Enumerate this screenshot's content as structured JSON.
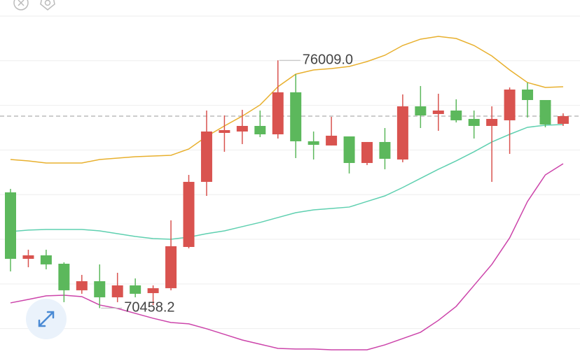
{
  "chart_data": {
    "type": "candlestick",
    "open": [
      73051,
      71562,
      71640,
      71452,
      70857,
      71061,
      70700,
      70967,
      70794,
      70904,
      71828,
      73286,
      74383,
      74414,
      74539,
      74351,
      75292,
      74195,
      74101,
      74304,
      73709,
      74179,
      73787,
      74978,
      74806,
      74884,
      74696,
      74539,
      74665,
      75354,
      75119,
      74586
    ],
    "high": [
      73129,
      71766,
      71766,
      71484,
      71202,
      71437,
      71249,
      71123,
      70967,
      72424,
      73442,
      74884,
      74774,
      74900,
      74884,
      76009,
      75699,
      74414,
      74743,
      74304,
      74179,
      74492,
      75245,
      75433,
      75260,
      75135,
      74884,
      74978,
      75401,
      75511,
      75119,
      74821
    ],
    "low": [
      71280,
      71374,
      71327,
      70591,
      70779,
      70458.2,
      70591,
      70700,
      70528,
      70857,
      71797,
      72972,
      73960,
      74132,
      74289,
      74257,
      73819,
      73787,
      74101,
      73474,
      73662,
      73568,
      73725,
      74492,
      74430,
      74618,
      74257,
      73286,
      73913,
      74727,
      74508,
      74539
    ],
    "close": [
      71562,
      71640,
      71437,
      70857,
      71061,
      70700,
      70967,
      70779,
      70904,
      71844,
      73286,
      74414,
      74445,
      74539,
      74351,
      75292,
      74195,
      74116,
      74320,
      73709,
      74179,
      73803,
      74978,
      74774,
      74884,
      74665,
      74539,
      74696,
      75354,
      75119,
      74571,
      74759
    ],
    "up_color": "#d9534f",
    "down_color": "#5cb85c",
    "bands": [
      {
        "color": "#e8b02e",
        "values": [
          73787,
          73756,
          73709,
          73709,
          73709,
          73787,
          73819,
          73850,
          73866,
          73881,
          74022,
          74304,
          74539,
          74759,
          75010,
          75417,
          75699,
          75793,
          75824,
          75871,
          75981,
          76122,
          76341,
          76483,
          76545,
          76498,
          76341,
          76106,
          75793,
          75511,
          75401,
          75417
        ]
      },
      {
        "color": "#5fd0b0",
        "values": [
          72173,
          72205,
          72220,
          72220,
          72220,
          72189,
          72126,
          72063,
          72016,
          72001,
          72048,
          72126,
          72189,
          72283,
          72377,
          72487,
          72596,
          72659,
          72690,
          72722,
          72847,
          72972,
          73160,
          73364,
          73568,
          73756,
          73960,
          74179,
          74351,
          74508,
          74555,
          74571
        ]
      },
      {
        "color": "#cc44aa",
        "values": [
          70575,
          70653,
          70732,
          70747,
          70716,
          70528,
          70450,
          70340,
          70230,
          70136,
          70105,
          69995,
          69870,
          69744,
          69650,
          69556,
          69541,
          69541,
          69525,
          69525,
          69525,
          69635,
          69776,
          69917,
          70183,
          70497,
          70967,
          71437,
          72032,
          72847,
          73442,
          73693
        ]
      }
    ],
    "ylim": [
      69430,
      77360
    ],
    "grid_lines": [
      70000,
      71000,
      72000,
      73000,
      74000,
      75000,
      76000,
      77000
    ],
    "max_label": {
      "value": 76009,
      "label": "76009.0"
    },
    "min_label": {
      "value": 70458.2,
      "label": "70458.2"
    }
  }
}
